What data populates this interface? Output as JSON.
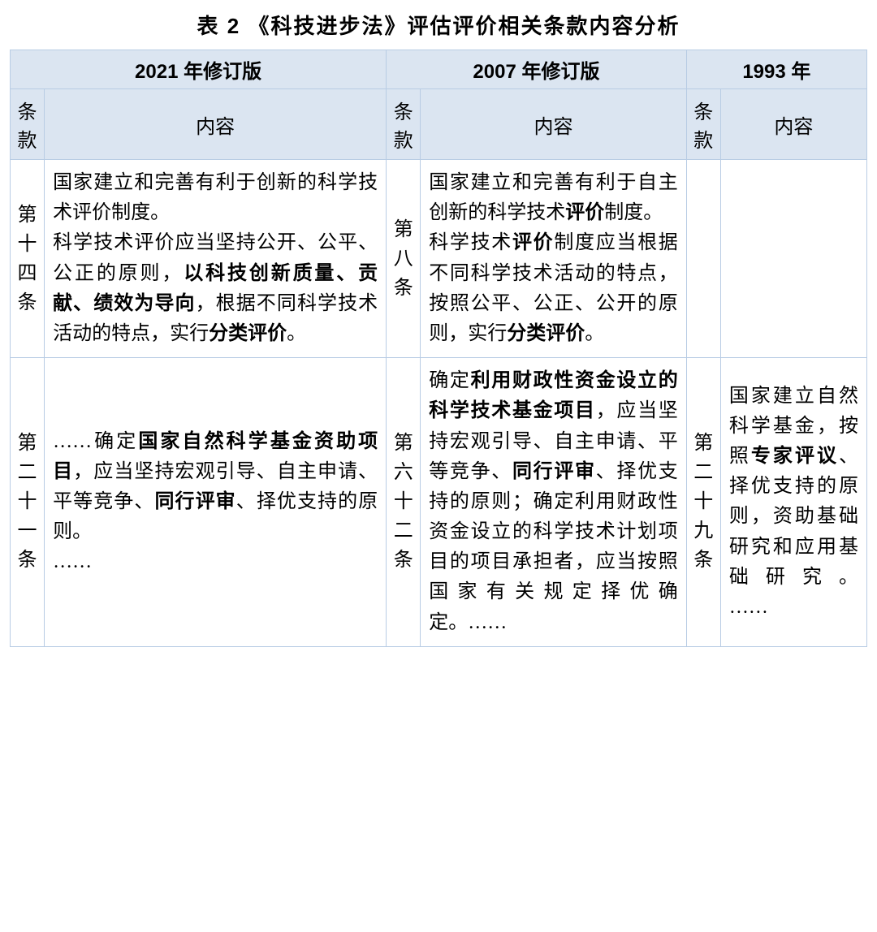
{
  "table_title": "表 2  《科技进步法》评估评价相关条款内容分析",
  "columns": {
    "v2021": "2021 年修订版",
    "v2007": "2007 年修订版",
    "v1993": "1993 年",
    "article": "条款",
    "content": "内容"
  },
  "rows": [
    {
      "v2021": {
        "article": "第十四条"
      },
      "v2007": {
        "article": "第八条"
      },
      "v1993": {
        "article": "",
        "content": ""
      }
    },
    {
      "v2021": {
        "article": "第二十一条"
      },
      "v2007": {
        "article": "第六十二条"
      },
      "v1993": {
        "article": "第二十九条"
      }
    }
  ],
  "colors": {
    "header_bg": "#dbe5f1",
    "border": "#b8cce4",
    "text": "#000000"
  },
  "fontsize_body": 24,
  "fontsize_title": 26
}
